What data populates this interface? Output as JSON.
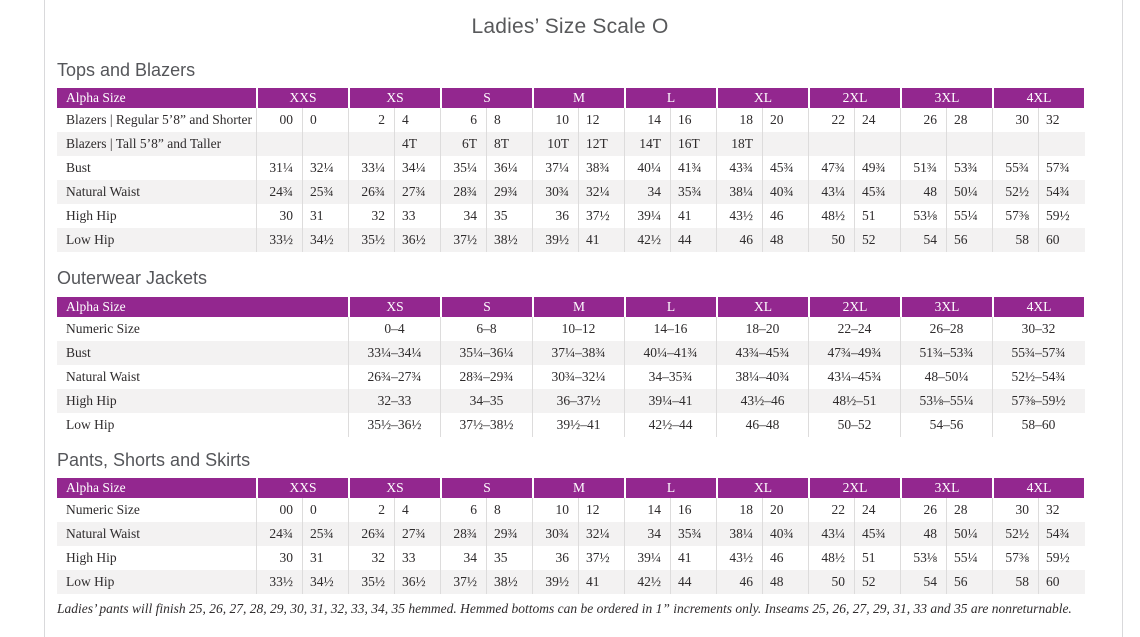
{
  "page": {
    "title": "Ladies’ Size Scale O",
    "footnote": "Ladies’ pants will finish 25, 26, 27, 28, 29, 30, 31, 32, 33, 34, 35 hemmed. Hemmed bottoms can be ordered in 1” increments only. Inseams 25, 26, 27, 29, 31, 33 and 35 are nonreturnable.",
    "accent_color": "#93278f",
    "stripe_color": "#f3f2f2"
  },
  "tables": [
    {
      "section_title": "Tops and Blazers",
      "header_label": "Alpha Size",
      "sizes": [
        "XXS",
        "XS",
        "S",
        "M",
        "L",
        "XL",
        "2XL",
        "3XL",
        "4XL"
      ],
      "split_columns": true,
      "rows": [
        {
          "label": "Blazers  |  Regular 5’8” and Shorter",
          "values": [
            "00",
            "0",
            "2",
            "4",
            "6",
            "8",
            "10",
            "12",
            "14",
            "16",
            "18",
            "20",
            "22",
            "24",
            "26",
            "28",
            "30",
            "32"
          ]
        },
        {
          "label": "Blazers  |  Tall 5’8” and Taller",
          "values": [
            "",
            "",
            "",
            "4T",
            "6T",
            "8T",
            "10T",
            "12T",
            "14T",
            "16T",
            "18T",
            "",
            "",
            "",
            "",
            "",
            "",
            ""
          ]
        },
        {
          "label": "Bust",
          "values": [
            "31¼",
            "32¼",
            "33¼",
            "34¼",
            "35¼",
            "36¼",
            "37¼",
            "38¾",
            "40¼",
            "41¾",
            "43¾",
            "45¾",
            "47¾",
            "49¾",
            "51¾",
            "53¾",
            "55¾",
            "57¾"
          ]
        },
        {
          "label": "Natural Waist",
          "values": [
            "24¾",
            "25¾",
            "26¾",
            "27¾",
            "28¾",
            "29¾",
            "30¾",
            "32¼",
            "34",
            "35¾",
            "38¼",
            "40¾",
            "43¼",
            "45¾",
            "48",
            "50¼",
            "52½",
            "54¾"
          ]
        },
        {
          "label": "High Hip",
          "values": [
            "30",
            "31",
            "32",
            "33",
            "34",
            "35",
            "36",
            "37½",
            "39¼",
            "41",
            "43½",
            "46",
            "48½",
            "51",
            "53⅛",
            "55¼",
            "57⅜",
            "59½"
          ]
        },
        {
          "label": "Low Hip",
          "values": [
            "33½",
            "34½",
            "35½",
            "36½",
            "37½",
            "38½",
            "39½",
            "41",
            "42½",
            "44",
            "46",
            "48",
            "50",
            "52",
            "54",
            "56",
            "58",
            "60"
          ]
        }
      ]
    },
    {
      "section_title": "Outerwear Jackets",
      "header_label": "Alpha Size",
      "sizes": [
        "XS",
        "S",
        "M",
        "L",
        "XL",
        "2XL",
        "3XL",
        "4XL"
      ],
      "split_columns": false,
      "rows": [
        {
          "label": "Numeric Size",
          "values": [
            "0–4",
            "6–8",
            "10–12",
            "14–16",
            "18–20",
            "22–24",
            "26–28",
            "30–32"
          ]
        },
        {
          "label": "Bust",
          "values": [
            "33¼–34¼",
            "35¼–36¼",
            "37¼–38¾",
            "40¼–41¾",
            "43¾–45¾",
            "47¾–49¾",
            "51¾–53¾",
            "55¾–57¾"
          ]
        },
        {
          "label": "Natural Waist",
          "values": [
            "26¾–27¾",
            "28¾–29¾",
            "30¾–32¼",
            "34–35¾",
            "38¼–40¾",
            "43¼–45¾",
            "48–50¼",
            "52½–54¾"
          ]
        },
        {
          "label": "High Hip",
          "values": [
            "32–33",
            "34–35",
            "36–37½",
            "39¼–41",
            "43½–46",
            "48½–51",
            "53⅛–55¼",
            "57⅜–59½"
          ]
        },
        {
          "label": "Low Hip",
          "values": [
            "35½–36½",
            "37½–38½",
            "39½–41",
            "42½–44",
            "46–48",
            "50–52",
            "54–56",
            "58–60"
          ]
        }
      ]
    },
    {
      "section_title": "Pants, Shorts and Skirts",
      "header_label": "Alpha Size",
      "sizes": [
        "XXS",
        "XS",
        "S",
        "M",
        "L",
        "XL",
        "2XL",
        "3XL",
        "4XL"
      ],
      "split_columns": true,
      "rows": [
        {
          "label": "Numeric Size",
          "values": [
            "00",
            "0",
            "2",
            "4",
            "6",
            "8",
            "10",
            "12",
            "14",
            "16",
            "18",
            "20",
            "22",
            "24",
            "26",
            "28",
            "30",
            "32"
          ]
        },
        {
          "label": "Natural Waist",
          "values": [
            "24¾",
            "25¾",
            "26¾",
            "27¾",
            "28¾",
            "29¾",
            "30¾",
            "32¼",
            "34",
            "35¾",
            "38¼",
            "40¾",
            "43¼",
            "45¾",
            "48",
            "50¼",
            "52½",
            "54¾"
          ]
        },
        {
          "label": "High Hip",
          "values": [
            "30",
            "31",
            "32",
            "33",
            "34",
            "35",
            "36",
            "37½",
            "39¼",
            "41",
            "43½",
            "46",
            "48½",
            "51",
            "53⅛",
            "55¼",
            "57⅜",
            "59½"
          ]
        },
        {
          "label": "Low Hip",
          "values": [
            "33½",
            "34½",
            "35½",
            "36½",
            "37½",
            "38½",
            "39½",
            "41",
            "42½",
            "44",
            "46",
            "48",
            "50",
            "52",
            "54",
            "56",
            "58",
            "60"
          ]
        }
      ]
    }
  ]
}
